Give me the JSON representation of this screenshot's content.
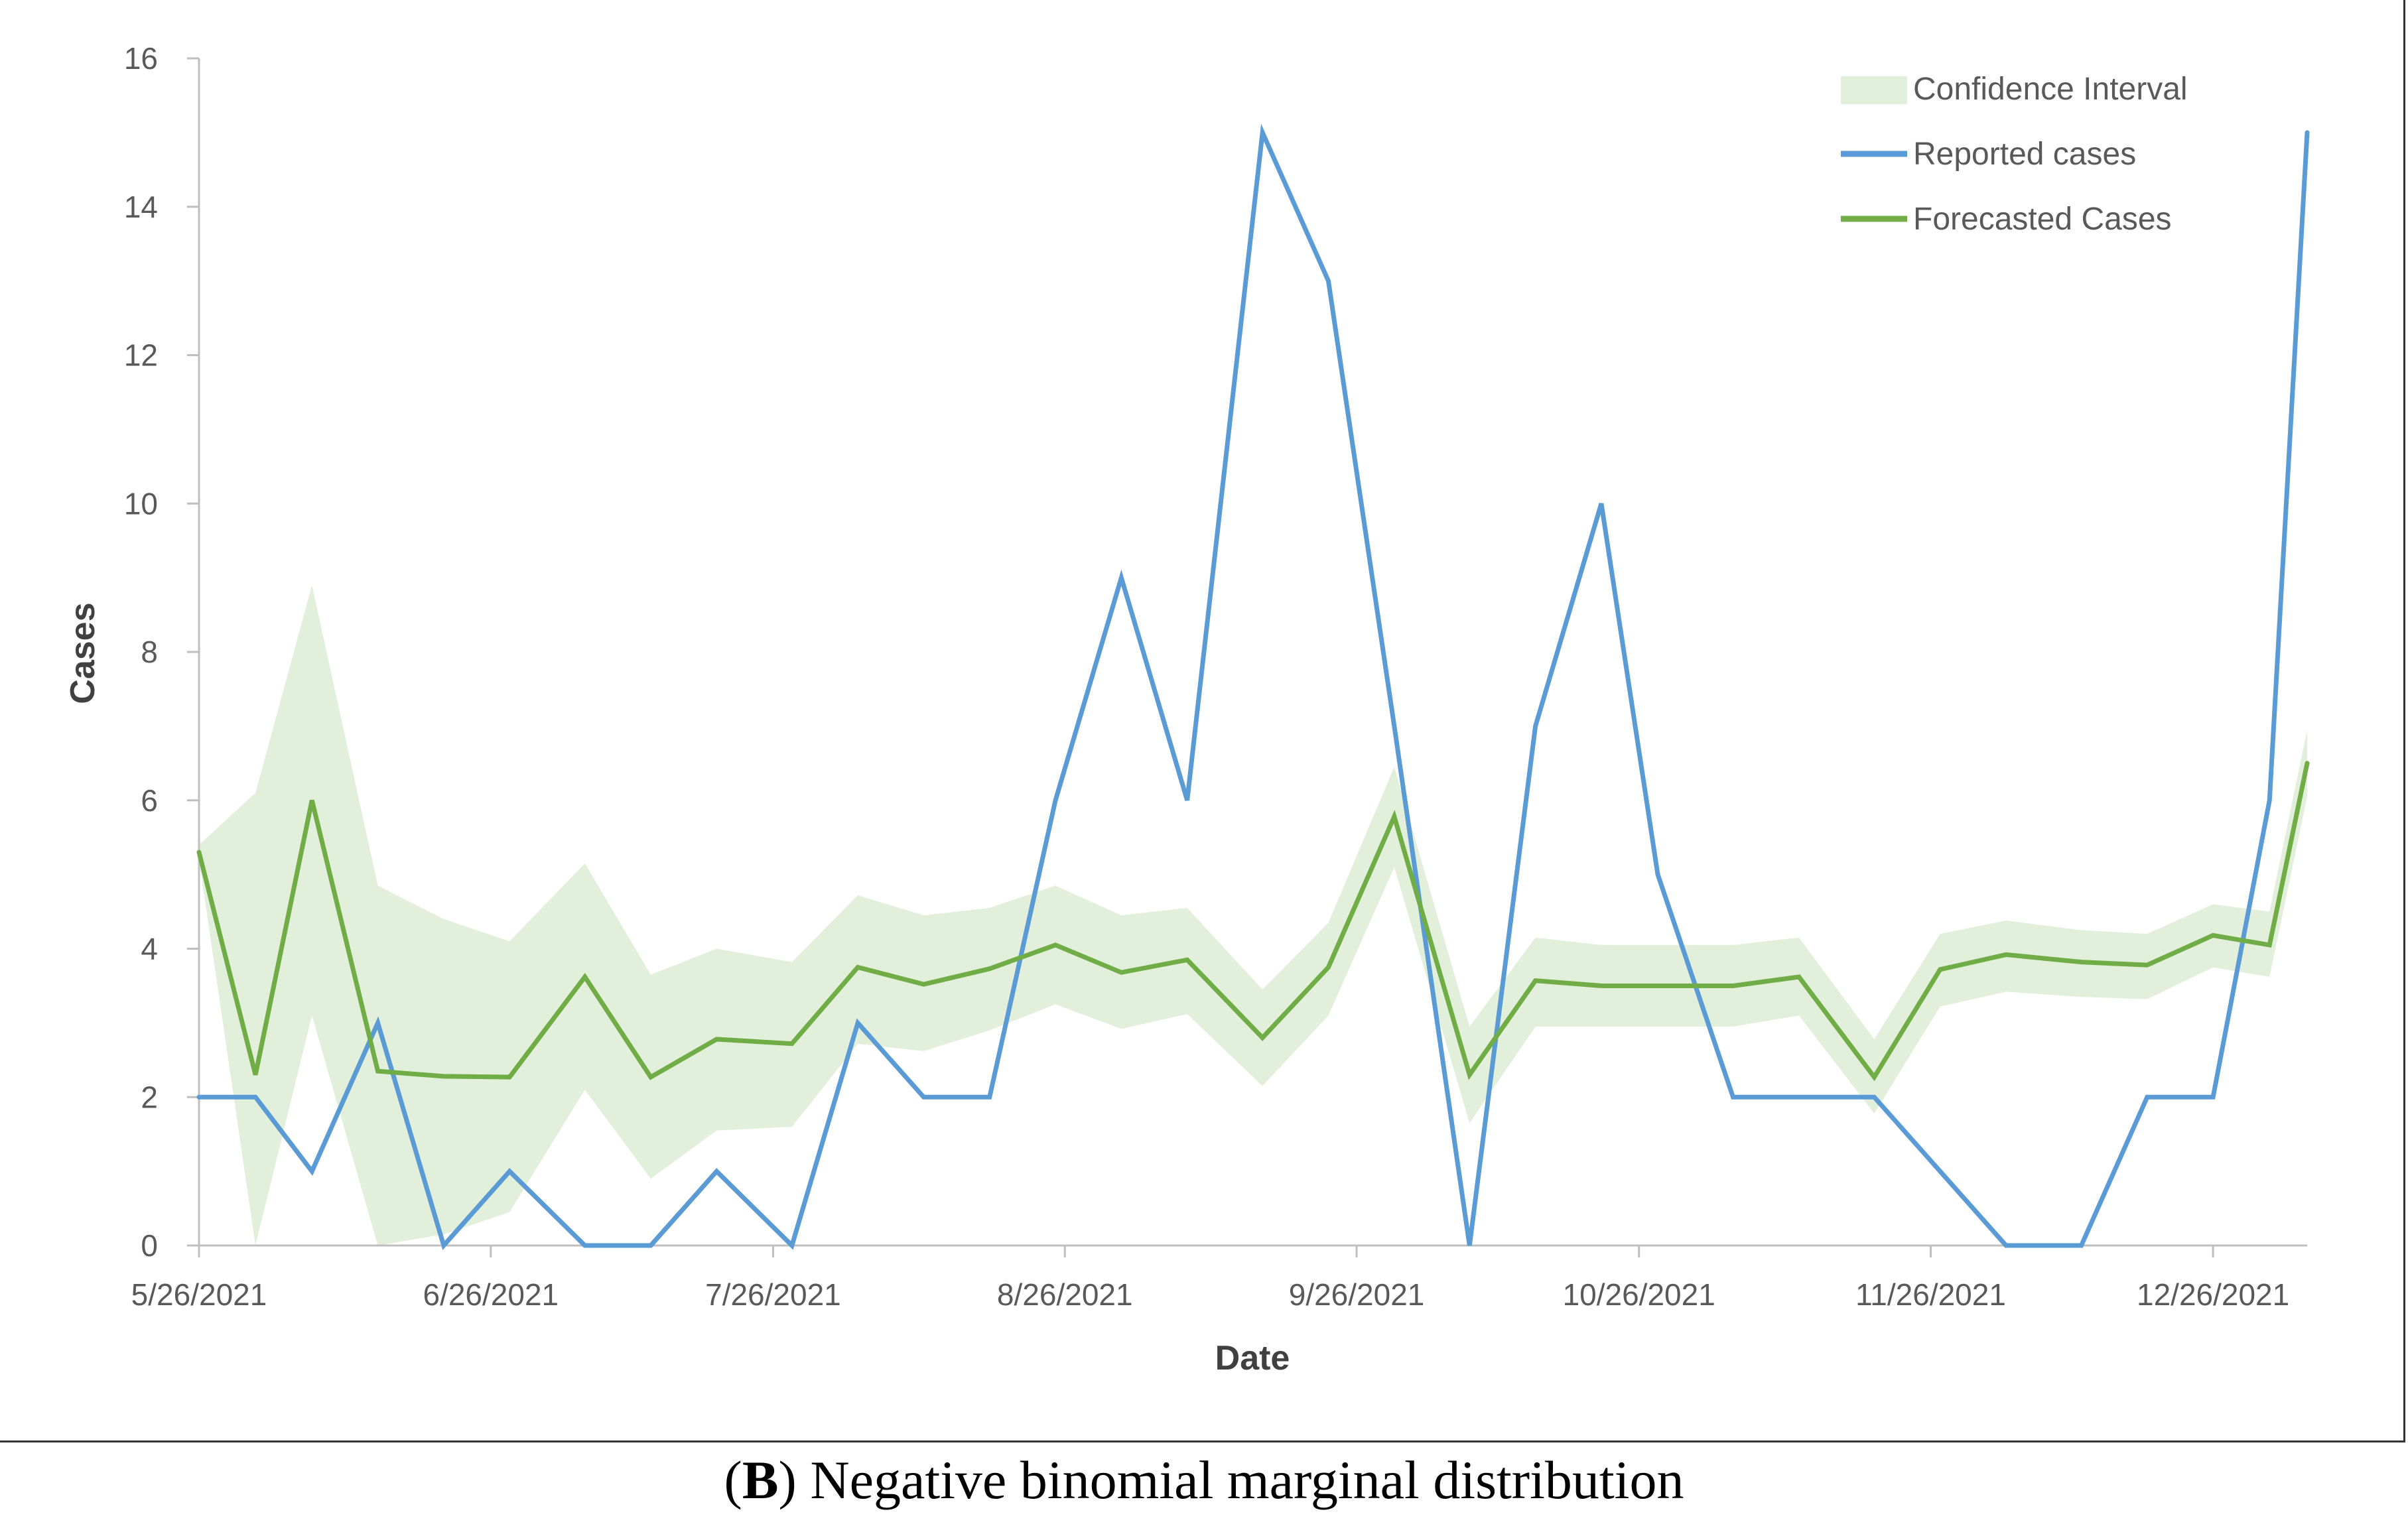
{
  "caption": {
    "open": "(",
    "letter": "B",
    "close": ")",
    "text": " Negative binomial marginal distribution"
  },
  "chart_data": {
    "type": "line",
    "title": "",
    "xlabel": "Date",
    "ylabel": "Cases",
    "ylim": [
      0,
      16
    ],
    "yticks": [
      0,
      2,
      4,
      6,
      8,
      10,
      12,
      14,
      16
    ],
    "x_range_days": [
      0,
      224
    ],
    "xtick_days": [
      0,
      31,
      61,
      92,
      123,
      153,
      184,
      214
    ],
    "xtick_labels": [
      "5/26/2021",
      "6/26/2021",
      "7/26/2021",
      "8/26/2021",
      "9/26/2021",
      "10/26/2021",
      "11/26/2021",
      "12/26/2021"
    ],
    "x_days": [
      0,
      6,
      12,
      19,
      26,
      33,
      41,
      48,
      55,
      63,
      70,
      77,
      84,
      91,
      98,
      105,
      113,
      120,
      127,
      135,
      142,
      149,
      155,
      163,
      170,
      178,
      185,
      192,
      200,
      207,
      214,
      220,
      224
    ],
    "series": [
      {
        "name": "Reported cases",
        "color": "#5B9BD5",
        "values": [
          2,
          2,
          1,
          3,
          0,
          1,
          0,
          0,
          1,
          0,
          3,
          2,
          2,
          6,
          9,
          6,
          15,
          13,
          7,
          0,
          7,
          10,
          5,
          2,
          2,
          2,
          1,
          0,
          0,
          2,
          2,
          6,
          15
        ]
      },
      {
        "name": "Forecasted Cases",
        "color": "#70AD47",
        "values": [
          5.3,
          2.3,
          6.0,
          2.35,
          2.28,
          2.27,
          3.62,
          2.27,
          2.78,
          2.72,
          3.75,
          3.52,
          3.73,
          4.05,
          3.68,
          3.85,
          2.8,
          3.75,
          5.78,
          2.3,
          3.57,
          3.5,
          3.5,
          3.5,
          3.62,
          2.27,
          3.72,
          3.92,
          3.82,
          3.78,
          4.18,
          4.05,
          6.5
        ]
      }
    ],
    "confidence_interval": {
      "name": "Confidence Interval",
      "color": "#E2EFDA",
      "upper": [
        5.4,
        6.1,
        8.9,
        4.85,
        4.4,
        4.1,
        5.15,
        3.65,
        4.0,
        3.82,
        4.72,
        4.45,
        4.55,
        4.85,
        4.45,
        4.55,
        3.45,
        4.35,
        6.45,
        2.95,
        4.15,
        4.05,
        4.05,
        4.05,
        4.15,
        2.78,
        4.2,
        4.38,
        4.25,
        4.2,
        4.6,
        4.5,
        6.95
      ],
      "lower": [
        5.2,
        0,
        3.1,
        0,
        0.15,
        0.45,
        2.1,
        0.9,
        1.55,
        1.6,
        2.72,
        2.62,
        2.9,
        3.25,
        2.92,
        3.12,
        2.15,
        3.1,
        5.1,
        1.65,
        2.95,
        2.95,
        2.95,
        2.95,
        3.1,
        1.78,
        3.22,
        3.42,
        3.35,
        3.32,
        3.75,
        3.62,
        6.05
      ]
    },
    "legend_position": "top-right",
    "legend": [
      "Confidence Interval",
      "Reported cases",
      "Forecasted Cases"
    ],
    "grid": false
  }
}
